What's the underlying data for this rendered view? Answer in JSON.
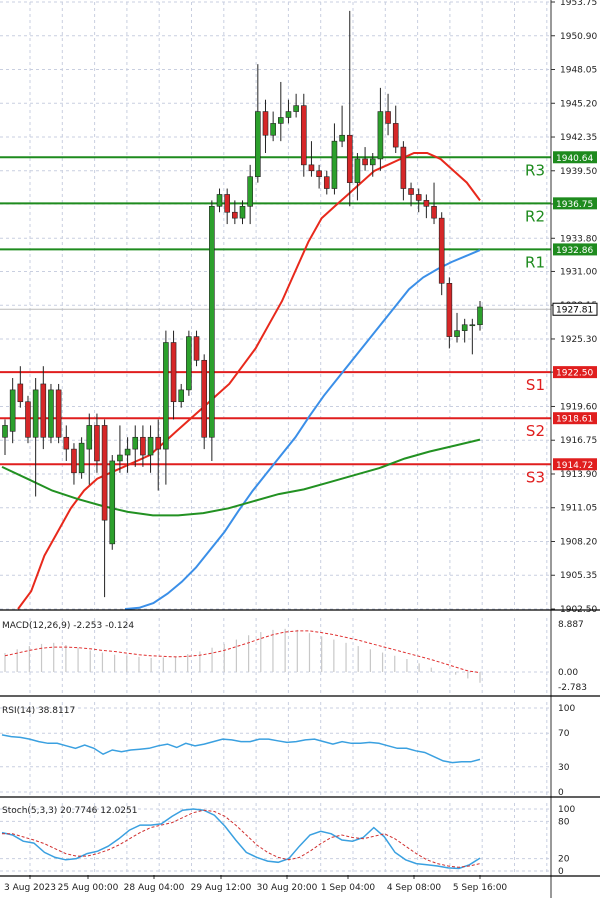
{
  "colors": {
    "up": "#2ca02c",
    "down": "#d62728",
    "resistance": "#1e8b1e",
    "support": "#e01e1e",
    "ma_fast": "#e8291c",
    "ma_mid": "#3b8fe8",
    "ma_slow": "#229122",
    "macd_hist": "#c8c8c8",
    "macd_signal": "#e03030",
    "osc_main": "#3aa0e0",
    "osc_signal": "#d03030",
    "grid": "#c9cfe0",
    "axis": "#333333"
  },
  "chart_data": {
    "type": "candlestick",
    "price_axis": {
      "range": [
        1902.5,
        1953.75
      ],
      "ticks": [
        "1953.75",
        "1950.90",
        "1948.05",
        "1945.20",
        "1942.35",
        "1939.50",
        "1936.70",
        "1933.80",
        "1931.00",
        "1928.15",
        "1925.30",
        "1922.50",
        "1919.60",
        "1916.75",
        "1913.90",
        "1911.05",
        "1908.20",
        "1905.35",
        "1902.50"
      ]
    },
    "time_axis": {
      "labels": [
        "3 Aug 2023",
        "25 Aug 00:00",
        "28 Aug 04:00",
        "29 Aug 12:00",
        "30 Aug 20:00",
        "1 Sep 04:00",
        "4 Sep 08:00",
        "5 Sep 16:00"
      ]
    },
    "current_price": "1927.81",
    "levels": [
      {
        "name": "R3",
        "value": 1940.64,
        "label": "1940.64",
        "kind": "resistance"
      },
      {
        "name": "R2",
        "value": 1936.75,
        "label": "1936.75",
        "kind": "resistance"
      },
      {
        "name": "R1",
        "value": 1932.86,
        "label": "1932.86",
        "kind": "resistance"
      },
      {
        "name": "S1",
        "value": 1922.5,
        "label": "1922.50",
        "kind": "support"
      },
      {
        "name": "S2",
        "value": 1918.61,
        "label": "1918.61",
        "kind": "support"
      },
      {
        "name": "S3",
        "value": 1914.72,
        "label": "1914.72",
        "kind": "support"
      }
    ],
    "candles": [
      {
        "o": 1917.0,
        "h": 1918.5,
        "l": 1915.5,
        "c": 1918.0
      },
      {
        "o": 1917.5,
        "h": 1922.0,
        "l": 1916.5,
        "c": 1921.0
      },
      {
        "o": 1921.5,
        "h": 1923.0,
        "l": 1919.5,
        "c": 1920.0
      },
      {
        "o": 1920.0,
        "h": 1920.5,
        "l": 1916.5,
        "c": 1917.0
      },
      {
        "o": 1917.0,
        "h": 1922.0,
        "l": 1912.0,
        "c": 1921.0
      },
      {
        "o": 1921.5,
        "h": 1923.0,
        "l": 1916.0,
        "c": 1917.0
      },
      {
        "o": 1917.0,
        "h": 1921.5,
        "l": 1916.5,
        "c": 1921.0
      },
      {
        "o": 1921.0,
        "h": 1921.5,
        "l": 1916.5,
        "c": 1917.0
      },
      {
        "o": 1917.0,
        "h": 1918.0,
        "l": 1915.0,
        "c": 1916.0
      },
      {
        "o": 1916.0,
        "h": 1916.5,
        "l": 1913.0,
        "c": 1914.0
      },
      {
        "o": 1914.0,
        "h": 1917.0,
        "l": 1913.5,
        "c": 1916.5
      },
      {
        "o": 1916.0,
        "h": 1919.0,
        "l": 1913.0,
        "c": 1918.0
      },
      {
        "o": 1918.0,
        "h": 1919.0,
        "l": 1914.0,
        "c": 1915.0
      },
      {
        "o": 1918.0,
        "h": 1918.5,
        "l": 1903.5,
        "c": 1910.0
      },
      {
        "o": 1908.0,
        "h": 1915.5,
        "l": 1907.5,
        "c": 1915.0
      },
      {
        "o": 1915.0,
        "h": 1918.0,
        "l": 1914.0,
        "c": 1915.5
      },
      {
        "o": 1915.5,
        "h": 1917.0,
        "l": 1914.0,
        "c": 1916.0
      },
      {
        "o": 1916.0,
        "h": 1918.0,
        "l": 1914.5,
        "c": 1917.0
      },
      {
        "o": 1917.0,
        "h": 1918.0,
        "l": 1914.5,
        "c": 1915.5
      },
      {
        "o": 1915.5,
        "h": 1918.0,
        "l": 1914.0,
        "c": 1917.0
      },
      {
        "o": 1917.0,
        "h": 1918.5,
        "l": 1912.5,
        "c": 1916.0
      },
      {
        "o": 1916.0,
        "h": 1926.0,
        "l": 1913.0,
        "c": 1925.0
      },
      {
        "o": 1925.0,
        "h": 1926.0,
        "l": 1918.5,
        "c": 1920.0
      },
      {
        "o": 1920.0,
        "h": 1921.5,
        "l": 1919.5,
        "c": 1921.0
      },
      {
        "o": 1921.0,
        "h": 1926.0,
        "l": 1920.5,
        "c": 1925.5
      },
      {
        "o": 1925.5,
        "h": 1926.0,
        "l": 1923.0,
        "c": 1923.5
      },
      {
        "o": 1923.5,
        "h": 1924.0,
        "l": 1916.0,
        "c": 1917.0
      },
      {
        "o": 1917.0,
        "h": 1937.0,
        "l": 1915.0,
        "c": 1936.5
      },
      {
        "o": 1936.5,
        "h": 1938.0,
        "l": 1936.0,
        "c": 1937.5
      },
      {
        "o": 1937.5,
        "h": 1938.0,
        "l": 1935.0,
        "c": 1936.0
      },
      {
        "o": 1936.0,
        "h": 1937.0,
        "l": 1935.0,
        "c": 1935.5
      },
      {
        "o": 1935.5,
        "h": 1937.0,
        "l": 1935.0,
        "c": 1936.5
      },
      {
        "o": 1936.5,
        "h": 1940.0,
        "l": 1935.0,
        "c": 1939.0
      },
      {
        "o": 1939.0,
        "h": 1948.5,
        "l": 1938.5,
        "c": 1944.5
      },
      {
        "o": 1944.5,
        "h": 1945.5,
        "l": 1941.0,
        "c": 1942.5
      },
      {
        "o": 1942.5,
        "h": 1944.5,
        "l": 1942.0,
        "c": 1943.5
      },
      {
        "o": 1943.5,
        "h": 1947.0,
        "l": 1942.0,
        "c": 1944.0
      },
      {
        "o": 1944.0,
        "h": 1945.5,
        "l": 1943.5,
        "c": 1944.5
      },
      {
        "o": 1944.5,
        "h": 1946.0,
        "l": 1944.0,
        "c": 1945.0
      },
      {
        "o": 1945.0,
        "h": 1946.0,
        "l": 1939.0,
        "c": 1940.0
      },
      {
        "o": 1940.0,
        "h": 1942.0,
        "l": 1939.0,
        "c": 1939.5
      },
      {
        "o": 1939.5,
        "h": 1940.0,
        "l": 1938.0,
        "c": 1939.0
      },
      {
        "o": 1939.0,
        "h": 1939.5,
        "l": 1937.5,
        "c": 1938.0
      },
      {
        "o": 1938.0,
        "h": 1943.5,
        "l": 1937.5,
        "c": 1942.0
      },
      {
        "o": 1942.0,
        "h": 1945.0,
        "l": 1941.5,
        "c": 1942.5
      },
      {
        "o": 1942.5,
        "h": 1953.0,
        "l": 1936.5,
        "c": 1938.5
      },
      {
        "o": 1938.5,
        "h": 1941.0,
        "l": 1937.0,
        "c": 1940.5
      },
      {
        "o": 1940.5,
        "h": 1941.5,
        "l": 1939.5,
        "c": 1940.0
      },
      {
        "o": 1940.0,
        "h": 1941.0,
        "l": 1939.0,
        "c": 1940.5
      },
      {
        "o": 1940.5,
        "h": 1946.5,
        "l": 1939.5,
        "c": 1944.5
      },
      {
        "o": 1944.5,
        "h": 1946.0,
        "l": 1942.5,
        "c": 1943.5
      },
      {
        "o": 1943.5,
        "h": 1945.0,
        "l": 1941.0,
        "c": 1941.5
      },
      {
        "o": 1941.5,
        "h": 1942.0,
        "l": 1937.0,
        "c": 1938.0
      },
      {
        "o": 1938.0,
        "h": 1938.5,
        "l": 1936.5,
        "c": 1937.5
      },
      {
        "o": 1937.5,
        "h": 1938.0,
        "l": 1936.0,
        "c": 1937.0
      },
      {
        "o": 1937.0,
        "h": 1937.5,
        "l": 1935.5,
        "c": 1936.5
      },
      {
        "o": 1936.5,
        "h": 1938.5,
        "l": 1935.0,
        "c": 1935.5
      },
      {
        "o": 1935.5,
        "h": 1936.0,
        "l": 1929.0,
        "c": 1930.0
      },
      {
        "o": 1930.0,
        "h": 1930.5,
        "l": 1924.5,
        "c": 1925.5
      },
      {
        "o": 1925.5,
        "h": 1927.5,
        "l": 1925.0,
        "c": 1926.0
      },
      {
        "o": 1926.0,
        "h": 1927.0,
        "l": 1925.0,
        "c": 1926.5
      },
      {
        "o": 1926.5,
        "h": 1927.0,
        "l": 1924.0,
        "c": 1926.5
      },
      {
        "o": 1926.5,
        "h": 1928.5,
        "l": 1926.0,
        "c": 1928.0
      }
    ],
    "moving_averages": {
      "fast": [
        1902.5,
        1904,
        1907,
        1909,
        1911,
        1912.5,
        1913.5,
        1914,
        1914.5,
        1915,
        1915.5,
        1916.5,
        1917.5,
        1918.5,
        1919.5,
        1920.5,
        1921.5,
        1923,
        1924.5,
        1926.5,
        1928.5,
        1931,
        1933.5,
        1935.5,
        1936.5,
        1937.5,
        1938.5,
        1939.5,
        1940,
        1940.5,
        1941,
        1941,
        1940.5,
        1939.5,
        1938.5,
        1937
      ],
      "mid": [
        1902.5,
        1902.6,
        1903,
        1903.8,
        1904.8,
        1906,
        1907.5,
        1909,
        1910.8,
        1912.5,
        1914,
        1915.5,
        1917,
        1918.8,
        1920.5,
        1922,
        1923.5,
        1925,
        1926.5,
        1928,
        1929.5,
        1930.5,
        1931.2,
        1931.8,
        1932.3,
        1932.8
      ],
      "slow": [
        1914.5,
        1913.5,
        1912.5,
        1911.8,
        1911.2,
        1910.7,
        1910.4,
        1910.4,
        1910.6,
        1911,
        1911.6,
        1912.2,
        1912.6,
        1913.2,
        1913.8,
        1914.4,
        1915.2,
        1915.8,
        1916.3,
        1916.8
      ]
    },
    "macd": {
      "label": "MACD(12,26,9) -2.253 -0.124",
      "range": [
        -2.783,
        8.887
      ],
      "ticks": [
        "8.887",
        "0.00",
        "-2.783"
      ],
      "histogram": [
        3.5,
        4.2,
        4.8,
        5.2,
        5.4,
        5.0,
        4.5,
        4.0,
        3.6,
        3.2,
        3.0,
        2.8,
        2.6,
        2.7,
        2.9,
        3.3,
        3.8,
        4.5,
        5.2,
        6.0,
        6.8,
        7.4,
        7.8,
        8.0,
        7.8,
        7.2,
        6.6,
        6.0,
        5.4,
        4.8,
        4.2,
        3.6,
        3.0,
        2.4,
        1.6,
        0.8,
        0.1,
        -0.5,
        -1.2,
        -2.0
      ],
      "signal": [
        3.0,
        3.5,
        4.0,
        4.4,
        4.6,
        4.6,
        4.5,
        4.3,
        4.0,
        3.8,
        3.5,
        3.2,
        3.0,
        2.9,
        2.8,
        2.9,
        3.1,
        3.5,
        4.0,
        4.7,
        5.4,
        6.2,
        6.9,
        7.4,
        7.6,
        7.6,
        7.3,
        6.9,
        6.4,
        5.9,
        5.3,
        4.7,
        4.1,
        3.5,
        2.9,
        2.3,
        1.6,
        0.9,
        0.2,
        -0.124
      ]
    },
    "rsi": {
      "label": "RSI(14) 38.8117",
      "range": [
        0,
        100
      ],
      "ticks": [
        "100",
        "70",
        "30",
        "0"
      ],
      "values": [
        68,
        66,
        65,
        63,
        60,
        58,
        58,
        55,
        52,
        56,
        52,
        45,
        50,
        48,
        50,
        51,
        52,
        55,
        57,
        53,
        58,
        55,
        57,
        60,
        63,
        62,
        60,
        60,
        63,
        63,
        61,
        59,
        60,
        62,
        63,
        60,
        57,
        60,
        58,
        58,
        59,
        58,
        55,
        52,
        52,
        49,
        47,
        42,
        37,
        35,
        36,
        36,
        38.8
      ]
    },
    "stoch": {
      "label": "Stoch(5,3,3) 20.7746 12.0251",
      "range": [
        0,
        100
      ],
      "ticks": [
        "100",
        "80",
        "20",
        "0"
      ],
      "k": [
        62,
        58,
        48,
        45,
        30,
        22,
        18,
        20,
        28,
        32,
        40,
        52,
        66,
        74,
        74,
        76,
        88,
        98,
        100,
        98,
        90,
        72,
        50,
        30,
        22,
        16,
        14,
        20,
        40,
        58,
        64,
        60,
        50,
        48,
        54,
        70,
        55,
        30,
        18,
        12,
        10,
        8,
        5,
        4,
        10,
        20.8
      ],
      "d": [
        60,
        60,
        55,
        50,
        44,
        36,
        28,
        24,
        24,
        28,
        34,
        42,
        52,
        62,
        70,
        74,
        78,
        86,
        94,
        98,
        96,
        88,
        74,
        58,
        42,
        30,
        22,
        18,
        22,
        32,
        44,
        54,
        58,
        54,
        52,
        56,
        60,
        52,
        40,
        28,
        18,
        12,
        8,
        6,
        8,
        12.0
      ]
    }
  }
}
